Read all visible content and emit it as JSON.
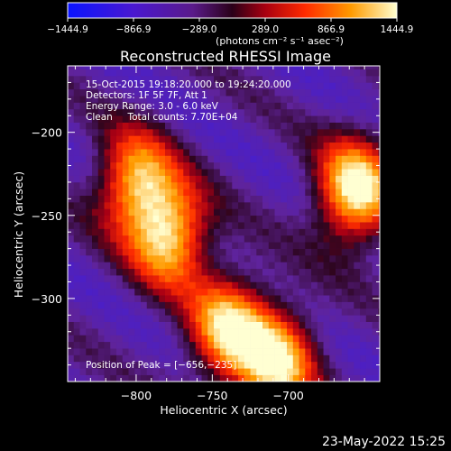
{
  "chart_data": {
    "type": "heatmap",
    "title": "Reconstructed RHESSI Image",
    "xlabel": "Heliocentric X (arcsec)",
    "ylabel": "Heliocentric Y (arcsec)",
    "xlim": [
      -845,
      -640
    ],
    "ylim": [
      -350,
      -160
    ],
    "x_ticks": [
      -800,
      -750,
      -700
    ],
    "x_tick_labels": [
      "−800",
      "−750",
      "−700"
    ],
    "y_ticks": [
      -200,
      -250,
      -300
    ],
    "y_tick_labels": [
      "−200",
      "−250",
      "−300"
    ],
    "colorbar": {
      "min": -1444.9,
      "max": 1444.9,
      "ticks": [
        -1444.9,
        -866.9,
        -289.0,
        289.0,
        866.9,
        1444.9
      ],
      "tick_labels": [
        "−1444.9",
        "−866.9",
        "−289.0",
        "289.0",
        "866.9",
        "1444.9"
      ],
      "unit_label": "(photons cm⁻² s⁻¹ asec⁻²)"
    },
    "info_lines": [
      "15-Oct-2015 19:18:20.000 to 19:24:20.000",
      "Detectors: 1F 5F 7F, Att 1",
      "Energy Range: 3.0 - 6.0 keV",
      "Clean     Total counts: 7.70E+04"
    ],
    "peak_label": "Position of Peak = [−656,−235]",
    "peak": [
      -656,
      -235
    ],
    "sources": [
      {
        "x": -800,
        "y": -230,
        "value": 1050
      },
      {
        "x": -778,
        "y": -262,
        "value": 1200
      },
      {
        "x": -740,
        "y": -318,
        "value": 1150
      },
      {
        "x": -708,
        "y": -338,
        "value": 1250
      },
      {
        "x": -656,
        "y": -235,
        "value": 1444.9
      }
    ],
    "grid": false
  },
  "footer": {
    "timestamp": "23-May-2022 15:25"
  },
  "colors": {
    "background": "#000000",
    "axes": "#ffffff",
    "text": "#ffffff"
  }
}
